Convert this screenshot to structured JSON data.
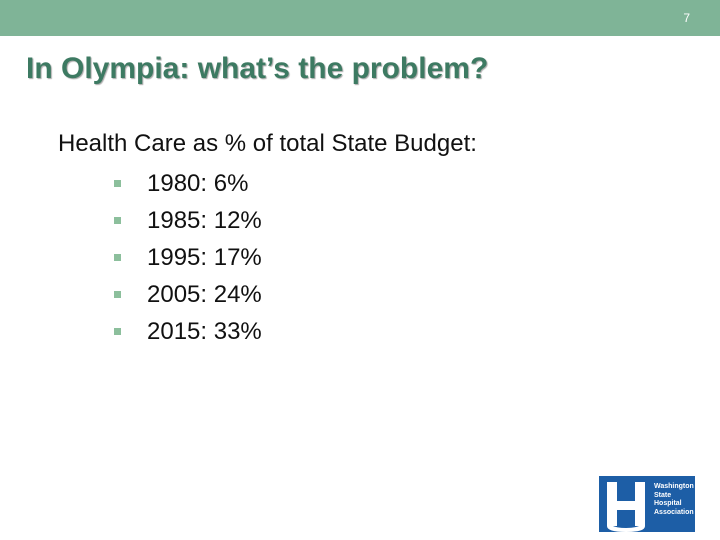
{
  "slide": {
    "page_number": "7",
    "title": "In Olympia: what’s the problem?",
    "subheading": "Health Care as % of total State Budget:",
    "bullets": [
      "1980: 6%",
      "1985: 12%",
      "1995: 17%",
      "2005: 24%",
      "2015: 33%"
    ]
  },
  "logo": {
    "name": "Washington State Hospital Association",
    "lines": [
      "Washington",
      "State",
      "Hospital",
      "Association"
    ],
    "icon": "wsha-h-logo-icon"
  },
  "colors": {
    "header_bar": "#7fb497",
    "title": "#3d7a62",
    "bullet": "#8cbf9c",
    "logo_background": "#1d5ea6"
  }
}
